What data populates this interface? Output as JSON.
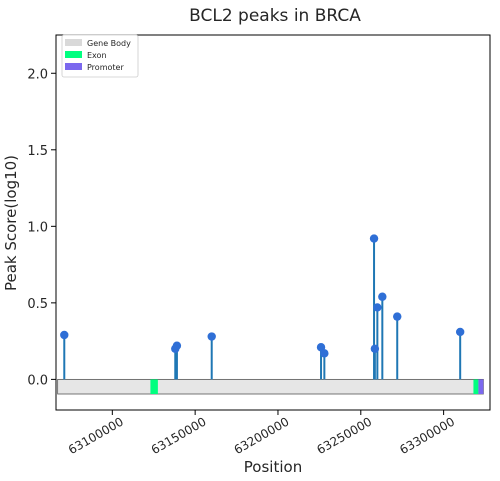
{
  "chart_data": {
    "type": "scatter",
    "title": "BCL2 peaks in BRCA",
    "xlabel": "Position",
    "ylabel": "Peak Score(log10)",
    "xlim": [
      63066000,
      63328000
    ],
    "ylim": [
      -0.2,
      2.25
    ],
    "x_ticks": [
      63100000,
      63150000,
      63200000,
      63250000,
      63300000
    ],
    "y_ticks": [
      0.0,
      0.5,
      1.0,
      1.5,
      2.0
    ],
    "legend": {
      "position": "top-left",
      "items": [
        {
          "label": "Gene Body",
          "color": "#d9d9d9"
        },
        {
          "label": "Exon",
          "color": "#00ff7f"
        },
        {
          "label": "Promoter",
          "color": "#7b68ee"
        }
      ]
    },
    "gene_body": {
      "start": 63067000,
      "end": 63324000,
      "color": "#e6e6e6"
    },
    "exons": [
      {
        "start": 63123000,
        "end": 63127500
      },
      {
        "start": 63318000,
        "end": 63321000
      }
    ],
    "promoter": {
      "start": 63321000,
      "end": 63324000
    },
    "peaks": [
      {
        "x": 63071000,
        "y": 0.29
      },
      {
        "x": 63138000,
        "y": 0.2
      },
      {
        "x": 63139000,
        "y": 0.22
      },
      {
        "x": 63160000,
        "y": 0.28
      },
      {
        "x": 63226000,
        "y": 0.21
      },
      {
        "x": 63228000,
        "y": 0.17
      },
      {
        "x": 63258000,
        "y": 0.92
      },
      {
        "x": 63258500,
        "y": 0.2
      },
      {
        "x": 63260000,
        "y": 0.47
      },
      {
        "x": 63263000,
        "y": 0.54
      },
      {
        "x": 63272000,
        "y": 0.41
      },
      {
        "x": 63310000,
        "y": 0.31
      }
    ],
    "peak_color": "#2f6fd6",
    "stem_color": "#1f77b4",
    "grid": false
  }
}
